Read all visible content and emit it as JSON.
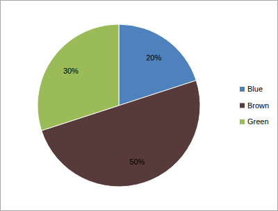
{
  "chart_data": {
    "type": "pie",
    "categories": [
      "Blue",
      "Brown",
      "Green"
    ],
    "values": [
      20,
      50,
      30
    ],
    "value_labels": [
      "20%",
      "50%",
      "30%"
    ],
    "colors": [
      "#4f81bd",
      "#573a3a",
      "#9bbb59"
    ],
    "data_labels": true,
    "legend": "right"
  }
}
